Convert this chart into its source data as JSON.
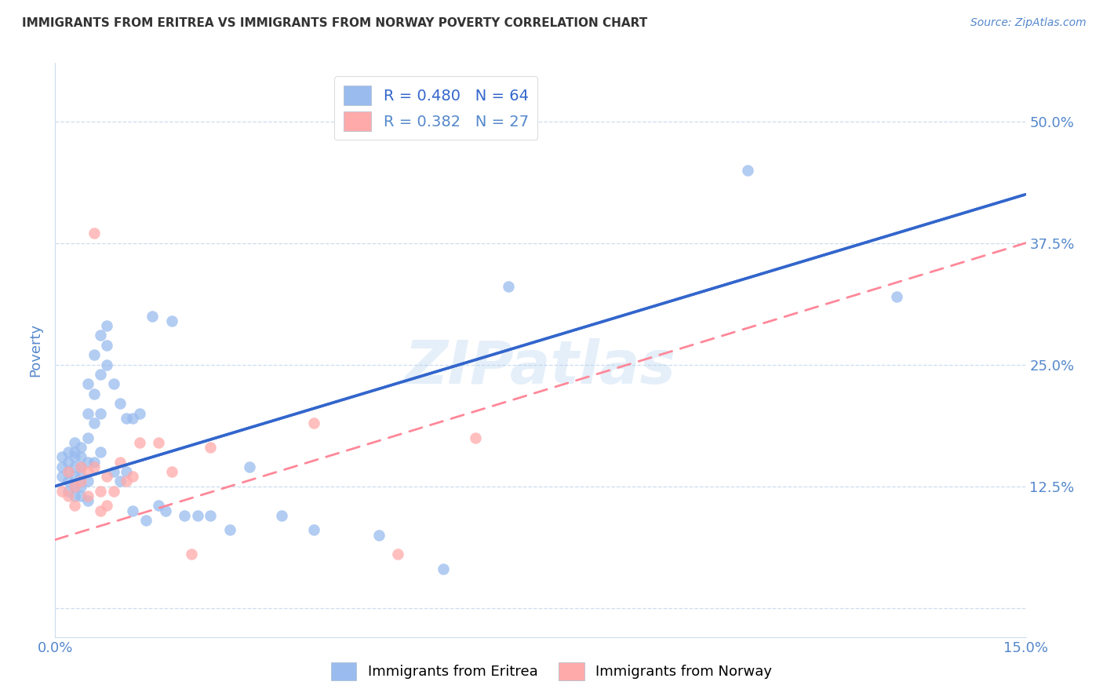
{
  "title": "IMMIGRANTS FROM ERITREA VS IMMIGRANTS FROM NORWAY POVERTY CORRELATION CHART",
  "source": "Source: ZipAtlas.com",
  "ylabel": "Poverty",
  "watermark": "ZIPatlas",
  "x_min": 0.0,
  "x_max": 0.15,
  "y_min": -0.03,
  "y_max": 0.56,
  "yticks": [
    0.0,
    0.125,
    0.25,
    0.375,
    0.5
  ],
  "ytick_labels_right": [
    "",
    "12.5%",
    "25.0%",
    "37.5%",
    "50.0%"
  ],
  "ytick_labels_left": [
    "",
    "",
    "",
    "",
    ""
  ],
  "xticks": [
    0.0,
    0.03,
    0.06,
    0.09,
    0.12,
    0.15
  ],
  "xtick_labels": [
    "0.0%",
    "",
    "",
    "",
    "",
    "15.0%"
  ],
  "blue_R": 0.48,
  "blue_N": 64,
  "pink_R": 0.382,
  "pink_N": 27,
  "blue_color": "#99BBEE",
  "pink_color": "#FFAAAA",
  "blue_line_color": "#3366CC",
  "pink_line_color": "#FF8899",
  "axis_color": "#5588CC",
  "grid_color": "#CCDDEE",
  "title_color": "#333333",
  "blue_line_x0": 0.0,
  "blue_line_y0": 0.125,
  "blue_line_x1": 0.15,
  "blue_line_y1": 0.425,
  "pink_line_x0": 0.0,
  "pink_line_y0": 0.07,
  "pink_line_x1": 0.15,
  "pink_line_y1": 0.375,
  "blue_scatter_x": [
    0.001,
    0.001,
    0.001,
    0.002,
    0.002,
    0.002,
    0.002,
    0.002,
    0.003,
    0.003,
    0.003,
    0.003,
    0.003,
    0.003,
    0.003,
    0.004,
    0.004,
    0.004,
    0.004,
    0.004,
    0.004,
    0.005,
    0.005,
    0.005,
    0.005,
    0.005,
    0.005,
    0.006,
    0.006,
    0.006,
    0.006,
    0.007,
    0.007,
    0.007,
    0.007,
    0.008,
    0.008,
    0.008,
    0.009,
    0.009,
    0.01,
    0.01,
    0.011,
    0.011,
    0.012,
    0.012,
    0.013,
    0.014,
    0.015,
    0.016,
    0.017,
    0.018,
    0.02,
    0.022,
    0.024,
    0.027,
    0.03,
    0.035,
    0.04,
    0.05,
    0.06,
    0.07,
    0.107,
    0.13
  ],
  "blue_scatter_y": [
    0.155,
    0.145,
    0.135,
    0.16,
    0.15,
    0.14,
    0.13,
    0.12,
    0.17,
    0.16,
    0.155,
    0.145,
    0.135,
    0.125,
    0.115,
    0.165,
    0.155,
    0.145,
    0.135,
    0.125,
    0.115,
    0.23,
    0.2,
    0.175,
    0.15,
    0.13,
    0.11,
    0.26,
    0.22,
    0.19,
    0.15,
    0.28,
    0.24,
    0.2,
    0.16,
    0.29,
    0.27,
    0.25,
    0.23,
    0.14,
    0.21,
    0.13,
    0.195,
    0.14,
    0.195,
    0.1,
    0.2,
    0.09,
    0.3,
    0.105,
    0.1,
    0.295,
    0.095,
    0.095,
    0.095,
    0.08,
    0.145,
    0.095,
    0.08,
    0.075,
    0.04,
    0.33,
    0.45,
    0.32
  ],
  "pink_scatter_x": [
    0.001,
    0.002,
    0.002,
    0.003,
    0.003,
    0.004,
    0.004,
    0.005,
    0.005,
    0.006,
    0.006,
    0.007,
    0.007,
    0.008,
    0.008,
    0.009,
    0.01,
    0.011,
    0.012,
    0.013,
    0.016,
    0.018,
    0.021,
    0.024,
    0.04,
    0.053,
    0.065
  ],
  "pink_scatter_y": [
    0.12,
    0.14,
    0.115,
    0.125,
    0.105,
    0.145,
    0.13,
    0.14,
    0.115,
    0.145,
    0.385,
    0.12,
    0.1,
    0.135,
    0.105,
    0.12,
    0.15,
    0.13,
    0.135,
    0.17,
    0.17,
    0.14,
    0.055,
    0.165,
    0.19,
    0.055,
    0.175
  ]
}
